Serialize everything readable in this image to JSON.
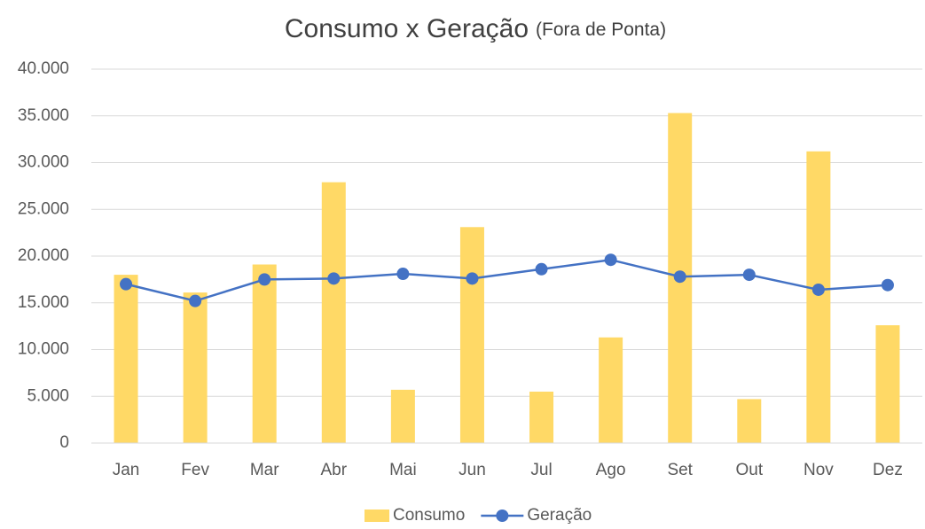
{
  "chart_data": {
    "type": "bar",
    "title": "Consumo x Geração",
    "subtitle": "(Fora de Ponta)",
    "categories": [
      "Jan",
      "Fev",
      "Mar",
      "Abr",
      "Mai",
      "Jun",
      "Jul",
      "Ago",
      "Set",
      "Out",
      "Nov",
      "Dez"
    ],
    "series": [
      {
        "name": "Consumo",
        "type": "bar",
        "color": "#ffd966",
        "values": [
          18000,
          16100,
          19100,
          27900,
          5700,
          23100,
          5500,
          11300,
          35300,
          4700,
          31200,
          12600
        ]
      },
      {
        "name": "Geração",
        "type": "line",
        "color": "#4472c4",
        "values": [
          17000,
          15200,
          17500,
          17600,
          18100,
          17600,
          18600,
          19600,
          17800,
          18000,
          16400,
          16900
        ]
      }
    ],
    "ylim": [
      0,
      40000
    ],
    "yticks": [
      0,
      {
        "value": 5000,
        "label": "5.000"
      },
      {
        "value": 10000,
        "label": "10.000"
      },
      {
        "value": 15000,
        "label": "15.000"
      },
      {
        "value": 20000,
        "label": "20.000"
      },
      {
        "value": 25000,
        "label": "25.000"
      },
      {
        "value": 30000,
        "label": "30.000"
      },
      {
        "value": 35000,
        "label": "35.000"
      },
      {
        "value": 40000,
        "label": "40.000"
      }
    ],
    "grid": true,
    "legend": "bottom"
  }
}
